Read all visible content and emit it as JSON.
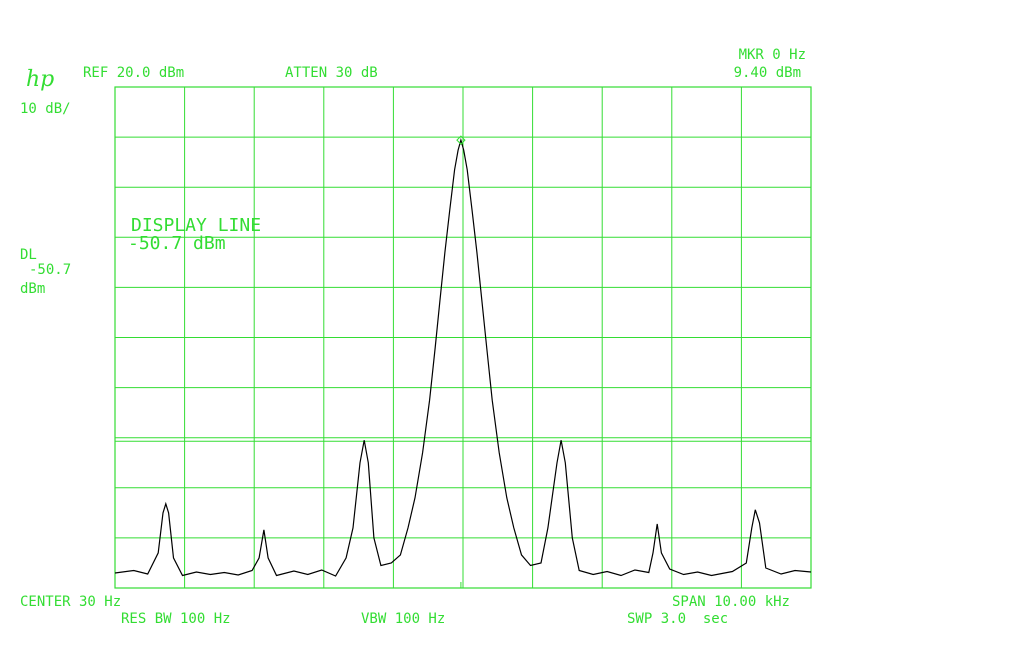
{
  "chart_data": {
    "type": "line",
    "logo": "hp",
    "ref_label": "REF 20.0 dBm",
    "atten_label": "ATTEN 30 dB",
    "scale_label": "10 dB/",
    "marker": {
      "x": 0,
      "value": 9.4,
      "x_label": "MKR 0 Hz",
      "value_label": "9.40 dBm"
    },
    "display_line": {
      "short_label": "DL",
      "value": -50.7,
      "unit": "dBm",
      "title": "DISPLAY LINE",
      "label": "-50.7 dBm"
    },
    "center_label": "CENTER 30 Hz",
    "span_label": "SPAN 10.00 kHz",
    "rbw_label": "RES BW 100 Hz",
    "vbw_label": "VBW 100 Hz",
    "sweep_label": "SWP 3.0  sec",
    "xlim": [
      -4970,
      5030
    ],
    "ylim": [
      -80,
      20
    ],
    "grid": true,
    "series": [
      {
        "color": "#000000",
        "x": [
          -4970,
          -4700,
          -4500,
          -4350,
          -4280,
          -4240,
          -4200,
          -4130,
          -4000,
          -3800,
          -3600,
          -3400,
          -3200,
          -3000,
          -2900,
          -2830,
          -2770,
          -2650,
          -2400,
          -2200,
          -2000,
          -1800,
          -1650,
          -1550,
          -1450,
          -1390,
          -1330,
          -1250,
          -1150,
          -1000,
          -870,
          -760,
          -660,
          -550,
          -450,
          -370,
          -300,
          -230,
          -160,
          -90,
          -40,
          0,
          40,
          90,
          160,
          230,
          300,
          370,
          450,
          550,
          660,
          760,
          870,
          1000,
          1150,
          1250,
          1380,
          1440,
          1500,
          1600,
          1700,
          1900,
          2100,
          2300,
          2500,
          2700,
          2760,
          2820,
          2880,
          3000,
          3200,
          3400,
          3600,
          3900,
          4100,
          4180,
          4230,
          4290,
          4380,
          4600,
          4800,
          5030
        ],
        "values": [
          -77,
          -76.5,
          -77.2,
          -73,
          -65,
          -63.2,
          -65,
          -74,
          -77.5,
          -76.8,
          -77.3,
          -76.9,
          -77.4,
          -76.5,
          -74,
          -68.4,
          -74,
          -77.5,
          -76.6,
          -77.3,
          -76.4,
          -77.6,
          -74,
          -68,
          -55,
          -50.5,
          -55,
          -70,
          -75.5,
          -75,
          -73.4,
          -68,
          -62,
          -53,
          -42.5,
          -32,
          -22.5,
          -13,
          -4.5,
          3.5,
          7.4,
          9.4,
          7.4,
          3.5,
          -4.5,
          -13,
          -22.5,
          -32,
          -42.5,
          -53,
          -62,
          -68,
          -73.4,
          -75.5,
          -75,
          -68,
          -55,
          -50.5,
          -55,
          -70,
          -76.5,
          -77.3,
          -76.7,
          -77.5,
          -76.4,
          -76.9,
          -73,
          -67.2,
          -73,
          -76.2,
          -77.3,
          -76.8,
          -77.5,
          -76.7,
          -75,
          -68,
          -64.4,
          -67,
          -76,
          -77.2,
          -76.5,
          -76.8
        ]
      }
    ]
  }
}
